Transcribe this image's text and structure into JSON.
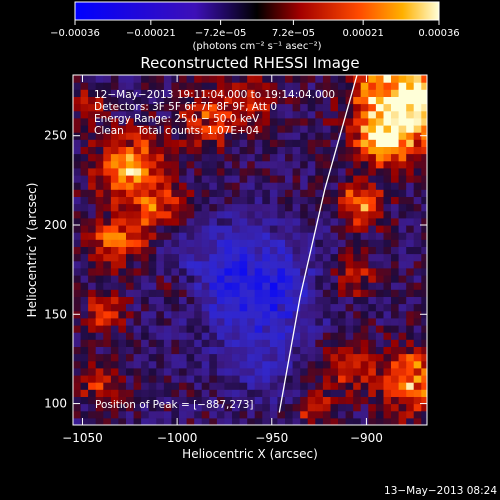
{
  "colors": {
    "background": "#000000",
    "foreground": "#ffffff",
    "limb": "#ffffff"
  },
  "chart_data": {
    "type": "heatmap",
    "title": "Reconstructed RHESSI Image",
    "xlabel": "Heliocentric X (arcsec)",
    "ylabel": "Heliocentric Y (arcsec)",
    "xlim": [
      -1055,
      -868
    ],
    "ylim": [
      88,
      284
    ],
    "xticks": [
      -1050,
      -1000,
      -950,
      -900
    ],
    "yticks": [
      100,
      150,
      200,
      250
    ],
    "xtick_labels": [
      "−1050",
      "−1000",
      "−950",
      "−900"
    ],
    "ytick_labels": [
      "100",
      "150",
      "200",
      "250"
    ],
    "colorbar": {
      "range": [
        -0.00036,
        0.00036
      ],
      "ticks": [
        -0.00036,
        -0.00021,
        -7.2e-05,
        7.2e-05,
        0.00021,
        0.00036
      ],
      "tick_labels": [
        "−0.00036",
        "−0.00021",
        "−7.2e−05",
        "7.2e−05",
        "0.00021",
        "0.00036"
      ],
      "units_label": "(photons cm⁻² s⁻¹ asec⁻²)"
    },
    "info_lines": [
      "12−May−2013 19:11:04.000 to 19:14:04.000",
      "Detectors: 3F 5F 6F 7F 8F 9F, Att 0",
      "Energy Range: 25.0 − 50.0 keV",
      "Clean    Total counts: 1.07E+04"
    ],
    "peak_label": "Position of Peak = [−887,273]",
    "peak_position": [
      -887,
      273
    ],
    "footer_date": "13−May−2013 08:24",
    "limb_line": [
      [
        -946,
        95
      ],
      [
        -935,
        160
      ],
      [
        -922,
        220
      ],
      [
        -905,
        284
      ]
    ]
  }
}
